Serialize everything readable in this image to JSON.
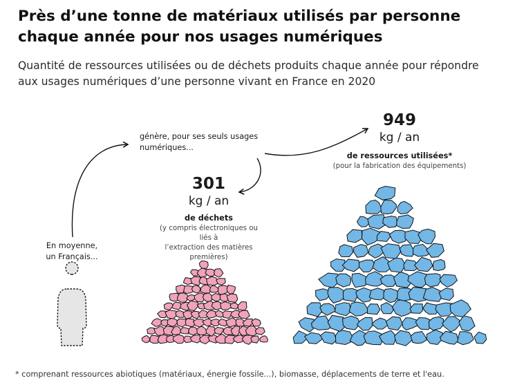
{
  "header": {
    "title": "Près d’une tonne de matériaux utilisés par personne chaque année pour nos usages numériques",
    "subtitle": "Quantité de ressources utilisées ou de déchets produits chaque année pour répondre aux usages numériques d’une personne vivant en France en 2020"
  },
  "person": {
    "label_line1": "En moyenne,",
    "label_line2": "un Français..."
  },
  "generates": {
    "line1": "génère, pour ses seuls usages",
    "line2": "numériques..."
  },
  "waste": {
    "value": "301",
    "unit": "kg / an",
    "label": "de déchets",
    "note_line1": "(y compris électroniques ou liés à",
    "note_line2": "l’extraction des matières premières)"
  },
  "resources": {
    "value": "949",
    "unit": "kg / an",
    "label": "de ressources utilisées*",
    "note": "(pour la fabrication des équipements)"
  },
  "footnote": "* comprenant ressources abiotiques (matériaux, énergie fossile...), biomasse, déplacements de terre et l'eau.",
  "colors": {
    "waste_fill": "#f0a3ba",
    "resources_fill": "#72b7e6",
    "outline": "#111111"
  }
}
